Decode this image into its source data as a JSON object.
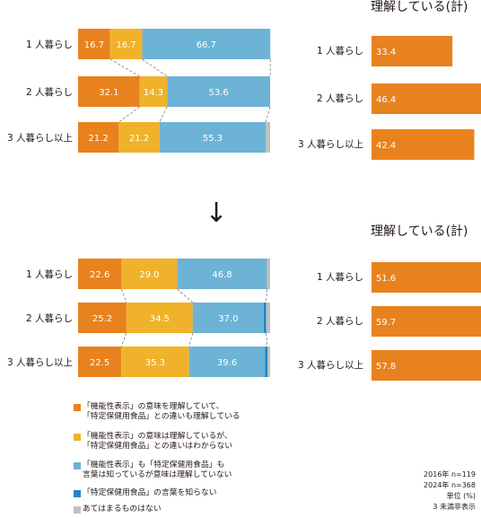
{
  "arrow_glyph": "↓",
  "colors": {
    "understand_diff": "#e8821e",
    "understand_no_diff": "#f0b22b",
    "only_words": "#6db3d5",
    "unknown_tokuho": "#1d86c8",
    "none": "#bfc0c1",
    "total_bar": "#e8821e"
  },
  "chart_data": [
    {
      "type": "bar",
      "stacked": true,
      "orientation": "horizontal",
      "panel": "2016 stacked",
      "categories": [
        "1 人暮らし",
        "2 人暮らし",
        "3 人暮らし以上"
      ],
      "series": [
        {
          "name": "「機能性表示」の意味を理解していて、「特定保健用食品」との違いも理解している",
          "values": [
            16.7,
            32.1,
            21.2
          ]
        },
        {
          "name": "「機能性表示」の意味は理解しているが、「特定保健用食品」との違いはわからない",
          "values": [
            16.7,
            14.3,
            21.2
          ]
        },
        {
          "name": "「機能性表示」も「特定保健用食品」も言葉は知っているが意味は理解していない",
          "values": [
            66.7,
            53.6,
            55.3
          ]
        },
        {
          "name": "「特定保健用食品」の言葉を知らない",
          "values": [
            0,
            0,
            0
          ]
        },
        {
          "name": "あてはまるものはない",
          "values": [
            0,
            0,
            2.3
          ]
        }
      ],
      "xlim": [
        0,
        100
      ]
    },
    {
      "type": "bar",
      "orientation": "horizontal",
      "panel": "2016 total",
      "title": "理解している(計)",
      "categories": [
        "1 人暮らし",
        "2 人暮らし",
        "3 人暮らし以上"
      ],
      "values": [
        33.4,
        46.4,
        42.4
      ]
    },
    {
      "type": "bar",
      "stacked": true,
      "orientation": "horizontal",
      "panel": "2024 stacked",
      "categories": [
        "1 人暮らし",
        "2 人暮らし",
        "3 人暮らし以上"
      ],
      "series": [
        {
          "name": "「機能性表示」の意味を理解していて、「特定保健用食品」との違いも理解している",
          "values": [
            22.6,
            25.2,
            22.5
          ]
        },
        {
          "name": "「機能性表示」の意味は理解しているが、「特定保健用食品」との違いはわからない",
          "values": [
            29.0,
            34.5,
            35.3
          ]
        },
        {
          "name": "「機能性表示」も「特定保健用食品」も言葉は知っているが意味は理解していない",
          "values": [
            46.8,
            37.0,
            39.6
          ]
        },
        {
          "name": "「特定保健用食品」の言葉を知らない",
          "values": [
            0,
            1.2,
            1.2
          ]
        },
        {
          "name": "あてはまるものはない",
          "values": [
            1.6,
            2.1,
            1.4
          ]
        }
      ],
      "xlim": [
        0,
        100
      ]
    },
    {
      "type": "bar",
      "orientation": "horizontal",
      "panel": "2024 total",
      "title": "理解している(計)",
      "categories": [
        "1 人暮らし",
        "2 人暮らし",
        "3 人暮らし以上"
      ],
      "values": [
        51.6,
        59.7,
        57.8
      ]
    }
  ],
  "legend": [
    {
      "key": "understand_diff",
      "lines": [
        "「機能性表示」の意味を理解していて、",
        "「特定保健用食品」との違いも理解している"
      ]
    },
    {
      "key": "understand_no_diff",
      "lines": [
        "「機能性表示」の意味は理解しているが、",
        "「特定保健用食品」との違いはわからない"
      ]
    },
    {
      "key": "only_words",
      "lines": [
        "「機能性表示」も「特定保健用食品」も",
        "言葉は知っているが意味は理解していない"
      ]
    },
    {
      "key": "unknown_tokuho",
      "lines": [
        "「特定保健用食品」の言葉を知らない"
      ]
    },
    {
      "key": "none",
      "lines": [
        "あてはまるものはない"
      ]
    }
  ],
  "notes": {
    "n2016": "2016年 n=119",
    "n2024": "2024年 n=368",
    "unit": "単位 (%)",
    "small": "3 未満非表示"
  }
}
